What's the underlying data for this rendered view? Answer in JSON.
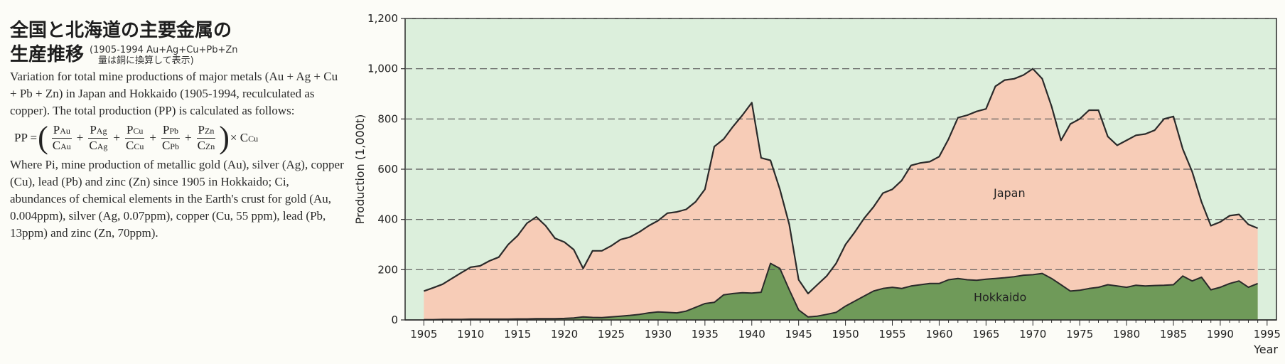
{
  "description": {
    "title_jp_line1": "全国と北海道の主要金属の",
    "title_jp_line2": "生産推移",
    "note_jp_line1": "(1905-1994 Au+Ag+Cu+Pb+Zn",
    "note_jp_line2": "量は銅に換算して表示)",
    "en_paragraph1": "Variation for total mine productions of major metals (Au + Ag + Cu + Pb + Zn) in Japan and Hokkaido (1905-1994, reculculated as copper). The total production (PP) is calculated as follows:",
    "formula": {
      "lhs": "PP =",
      "terms": [
        {
          "num": "P",
          "num_sub": "Au",
          "den": "C",
          "den_sub": "Au"
        },
        {
          "num": "P",
          "num_sub": "Ag",
          "den": "C",
          "den_sub": "Ag"
        },
        {
          "num": "P",
          "num_sub": "Cu",
          "den": "C",
          "den_sub": "Cu"
        },
        {
          "num": "P",
          "num_sub": "Pb",
          "den": "C",
          "den_sub": "Pb"
        },
        {
          "num": "P",
          "num_sub": "Zn",
          "den": "C",
          "den_sub": "Zn"
        }
      ],
      "rhs": "× C",
      "rhs_sub": "Cu"
    },
    "en_paragraph2": "Where Pi, mine production of metallic gold (Au), silver (Ag), copper (Cu), lead (Pb) and zinc (Zn) since 1905 in Hokkaido; Ci, abundances of chemical elements in the Earth's crust for gold (Au, 0.004ppm), silver (Ag, 0.07ppm), copper (Cu, 55 ppm), lead (Pb, 13ppm) and zinc (Zn, 70ppm)."
  },
  "colors": {
    "background": "#dcefdc",
    "japan_fill": "#f7ccb7",
    "hokkaido_fill": "#6f9a59",
    "line": "#2a2a2a",
    "grid": "#555555"
  },
  "chart_data": {
    "type": "area",
    "xlabel": "Year",
    "ylabel": "Production (1,000t)",
    "xlim": [
      1903,
      1996
    ],
    "ylim": [
      0,
      1200
    ],
    "xticks": [
      1905,
      1910,
      1915,
      1920,
      1925,
      1930,
      1935,
      1940,
      1945,
      1950,
      1955,
      1960,
      1965,
      1970,
      1975,
      1980,
      1985,
      1990,
      1995
    ],
    "yticks": [
      0,
      200,
      400,
      600,
      800,
      1000,
      1200
    ],
    "ytick_labels": [
      "0",
      "200",
      "400",
      "600",
      "800",
      "1,000",
      "1,200"
    ],
    "grid": "horizontal-dashed",
    "series": [
      {
        "name": "Japan",
        "x": [
          1905,
          1906,
          1907,
          1908,
          1909,
          1910,
          1911,
          1912,
          1913,
          1914,
          1915,
          1916,
          1917,
          1918,
          1919,
          1920,
          1921,
          1922,
          1923,
          1924,
          1925,
          1926,
          1927,
          1928,
          1929,
          1930,
          1931,
          1932,
          1933,
          1934,
          1935,
          1936,
          1937,
          1938,
          1939,
          1940,
          1941,
          1942,
          1943,
          1944,
          1945,
          1946,
          1947,
          1948,
          1949,
          1950,
          1951,
          1952,
          1953,
          1954,
          1955,
          1956,
          1957,
          1958,
          1959,
          1960,
          1961,
          1962,
          1963,
          1964,
          1965,
          1966,
          1967,
          1968,
          1969,
          1970,
          1971,
          1972,
          1973,
          1974,
          1975,
          1976,
          1977,
          1978,
          1979,
          1980,
          1981,
          1982,
          1983,
          1984,
          1985,
          1986,
          1987,
          1988,
          1989,
          1990,
          1991,
          1992,
          1993,
          1994
        ],
        "values": [
          115,
          128,
          142,
          165,
          188,
          210,
          215,
          235,
          250,
          300,
          335,
          385,
          410,
          375,
          325,
          310,
          280,
          205,
          275,
          275,
          295,
          320,
          330,
          350,
          375,
          395,
          425,
          430,
          440,
          470,
          520,
          690,
          720,
          770,
          815,
          865,
          645,
          635,
          520,
          380,
          160,
          105,
          140,
          175,
          225,
          300,
          350,
          405,
          450,
          505,
          520,
          555,
          615,
          625,
          630,
          650,
          720,
          805,
          815,
          830,
          840,
          930,
          955,
          960,
          975,
          1000,
          960,
          850,
          715,
          780,
          800,
          835,
          835,
          730,
          695,
          715,
          735,
          740,
          755,
          800,
          810,
          680,
          590,
          470,
          375,
          390,
          415,
          420,
          380,
          365
        ]
      },
      {
        "name": "Hokkaido",
        "x": [
          1905,
          1906,
          1907,
          1908,
          1909,
          1910,
          1911,
          1912,
          1913,
          1914,
          1915,
          1916,
          1917,
          1918,
          1919,
          1920,
          1921,
          1922,
          1923,
          1924,
          1925,
          1926,
          1927,
          1928,
          1929,
          1930,
          1931,
          1932,
          1933,
          1934,
          1935,
          1936,
          1937,
          1938,
          1939,
          1940,
          1941,
          1942,
          1943,
          1944,
          1945,
          1946,
          1947,
          1948,
          1949,
          1950,
          1951,
          1952,
          1953,
          1954,
          1955,
          1956,
          1957,
          1958,
          1959,
          1960,
          1961,
          1962,
          1963,
          1964,
          1965,
          1966,
          1967,
          1968,
          1969,
          1970,
          1971,
          1972,
          1973,
          1974,
          1975,
          1976,
          1977,
          1978,
          1979,
          1980,
          1981,
          1982,
          1983,
          1984,
          1985,
          1986,
          1987,
          1988,
          1989,
          1990,
          1991,
          1992,
          1993,
          1994
        ],
        "values": [
          1,
          1,
          2,
          2,
          2,
          3,
          3,
          3,
          3,
          3,
          4,
          4,
          5,
          5,
          5,
          6,
          8,
          12,
          10,
          9,
          12,
          15,
          18,
          22,
          28,
          32,
          30,
          28,
          35,
          50,
          65,
          70,
          100,
          105,
          108,
          107,
          110,
          225,
          205,
          120,
          40,
          12,
          15,
          22,
          30,
          55,
          75,
          95,
          115,
          125,
          130,
          125,
          135,
          140,
          145,
          145,
          160,
          165,
          160,
          158,
          162,
          165,
          168,
          172,
          178,
          180,
          185,
          165,
          140,
          115,
          118,
          125,
          130,
          140,
          135,
          130,
          138,
          135,
          137,
          138,
          140,
          175,
          155,
          170,
          120,
          130,
          145,
          155,
          130,
          145
        ]
      }
    ],
    "annotations": [
      "Japan",
      "Hokkaido"
    ]
  }
}
